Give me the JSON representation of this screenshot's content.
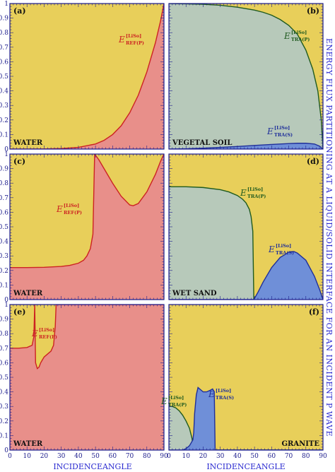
{
  "figure": {
    "side_title": "ENERGY FLUX PARTITIONING AT A LIQUID/SOLID INTERFACE FOR AN INCIDENT P WAVE",
    "x_axis_title": "INCIDENCEANGLE",
    "y_ticks": [
      "0",
      "0.1",
      "0.2",
      "0.3",
      "0.4",
      "0.5",
      "0.6",
      "0.7",
      "0.8",
      "0.9",
      "1"
    ],
    "x_ticks": [
      "0",
      "10",
      "20",
      "30",
      "40",
      "50",
      "60",
      "70",
      "80",
      "90"
    ],
    "colors": {
      "yellow": "#e8cf5a",
      "red_fill": "#e88f8a",
      "red_line": "#cc2222",
      "green_fill": "#b7c9ba",
      "green_line": "#1f5a1f",
      "blue_fill": "#6f8fd8",
      "blue_line": "#1f2f9a",
      "axis": "#1c1c8c"
    }
  },
  "chart_data": [
    {
      "panel": "(a)",
      "type": "area",
      "material": "WATER",
      "xlim": [
        0,
        90
      ],
      "ylim": [
        0,
        1
      ],
      "label_main": "E",
      "label_sup": "[LiSo]",
      "label_sub": "REF(P)",
      "label_color": "red",
      "series": [
        {
          "name": "E REF(P)",
          "color": "red",
          "x": [
            0,
            10,
            20,
            30,
            40,
            50,
            55,
            60,
            65,
            70,
            75,
            80,
            85,
            88,
            90
          ],
          "values": [
            0,
            0,
            0.001,
            0.004,
            0.012,
            0.035,
            0.06,
            0.1,
            0.16,
            0.25,
            0.37,
            0.53,
            0.73,
            0.88,
            1.0
          ]
        }
      ]
    },
    {
      "panel": "(b)",
      "type": "area",
      "material": "VEGETAL SOIL",
      "xlim": [
        0,
        90
      ],
      "ylim": [
        0,
        1
      ],
      "labels": [
        {
          "main": "E",
          "sup": "[LiSo]",
          "sub": "TRA(P)",
          "color": "green"
        },
        {
          "main": "E",
          "sup": "[LiSo]",
          "sub": "TRA(S)",
          "color": "blue"
        }
      ],
      "series": [
        {
          "name": "E TRA(P)",
          "color": "green",
          "x": [
            0,
            10,
            20,
            30,
            40,
            50,
            55,
            60,
            65,
            70,
            75,
            80,
            84,
            87,
            89,
            90
          ],
          "values": [
            1.0,
            0.998,
            0.995,
            0.988,
            0.975,
            0.955,
            0.94,
            0.92,
            0.89,
            0.85,
            0.79,
            0.68,
            0.55,
            0.4,
            0.2,
            0
          ]
        },
        {
          "name": "E TRA(S)",
          "color": "blue",
          "x": [
            0,
            10,
            20,
            30,
            40,
            50,
            60,
            70,
            75,
            80,
            85,
            88,
            90
          ],
          "values": [
            0,
            0.002,
            0.006,
            0.012,
            0.018,
            0.025,
            0.032,
            0.038,
            0.04,
            0.04,
            0.035,
            0.02,
            0
          ]
        }
      ]
    },
    {
      "panel": "(c)",
      "type": "area",
      "material": "WATER",
      "xlim": [
        0,
        90
      ],
      "ylim": [
        0,
        1
      ],
      "label_main": "E",
      "label_sup": "[LiSo]",
      "label_sub": "REF(P)",
      "label_color": "red",
      "series": [
        {
          "name": "E REF(P)",
          "color": "red",
          "x": [
            0,
            10,
            20,
            30,
            35,
            40,
            43,
            45,
            47,
            48.5,
            49.5,
            52,
            55,
            60,
            65,
            70,
            72,
            75,
            80,
            85,
            88,
            90
          ],
          "values": [
            0.22,
            0.22,
            0.222,
            0.228,
            0.235,
            0.25,
            0.27,
            0.3,
            0.35,
            0.45,
            1.0,
            0.96,
            0.9,
            0.8,
            0.71,
            0.65,
            0.645,
            0.66,
            0.74,
            0.86,
            0.95,
            1.0
          ]
        }
      ]
    },
    {
      "panel": "(d)",
      "type": "area",
      "material": "WET SAND",
      "xlim": [
        0,
        90
      ],
      "ylim": [
        0,
        1
      ],
      "labels": [
        {
          "main": "E",
          "sup": "[LiSo]",
          "sub": "TRA(P)",
          "color": "green"
        },
        {
          "main": "E",
          "sup": "[LiSo]",
          "sub": "TRA(S)",
          "color": "blue"
        }
      ],
      "series": [
        {
          "name": "E TRA(P)",
          "color": "green",
          "x": [
            0,
            10,
            20,
            30,
            35,
            40,
            43,
            45,
            47,
            48,
            49,
            49.6,
            90
          ],
          "values": [
            0.775,
            0.775,
            0.77,
            0.755,
            0.74,
            0.715,
            0.69,
            0.665,
            0.62,
            0.57,
            0.47,
            0,
            0
          ]
        },
        {
          "name": "E TRA(S)",
          "color": "blue",
          "x": [
            0,
            20,
            40,
            49.6,
            52,
            55,
            60,
            65,
            70,
            73,
            75,
            80,
            85,
            88,
            90
          ],
          "values": [
            0,
            0,
            0,
            0,
            0.05,
            0.12,
            0.22,
            0.29,
            0.325,
            0.33,
            0.32,
            0.27,
            0.16,
            0.07,
            0
          ]
        }
      ]
    },
    {
      "panel": "(e)",
      "type": "area",
      "material": "WATER",
      "xlim": [
        0,
        90
      ],
      "ylim": [
        0,
        1
      ],
      "label_main": "E",
      "label_sup": "[LiSo]",
      "label_sub": "REF(P)",
      "label_color": "red",
      "series": [
        {
          "name": "E REF(P)",
          "color": "red",
          "x": [
            0,
            5,
            10,
            13,
            14,
            14.5,
            15,
            16,
            17,
            18,
            19,
            20,
            22,
            24,
            25.5,
            26.5,
            27,
            90
          ],
          "values": [
            0.7,
            0.7,
            0.705,
            0.72,
            0.78,
            1.0,
            0.6,
            0.56,
            0.57,
            0.6,
            0.62,
            0.64,
            0.66,
            0.68,
            0.72,
            0.85,
            1.0,
            1.0
          ]
        }
      ]
    },
    {
      "panel": "(f)",
      "type": "area",
      "material": "GRANITE",
      "xlim": [
        0,
        90
      ],
      "ylim": [
        0,
        1
      ],
      "labels": [
        {
          "main": "E",
          "sup": "[LiSo]",
          "sub": "TRA(P)",
          "color": "green"
        },
        {
          "main": "E",
          "sup": "[LiSo]",
          "sub": "TRA(S)",
          "color": "blue"
        }
      ],
      "series": [
        {
          "name": "E TRA(P)",
          "color": "green",
          "x": [
            0,
            2,
            4,
            6,
            8,
            10,
            12,
            13.5,
            14,
            14.5,
            90
          ],
          "values": [
            0.3,
            0.3,
            0.29,
            0.27,
            0.24,
            0.2,
            0.15,
            0.08,
            0.03,
            0,
            0
          ]
        },
        {
          "name": "E TRA(S)",
          "color": "blue",
          "x": [
            0,
            8,
            10,
            12,
            14,
            14.5,
            15,
            16,
            17,
            18,
            20,
            22,
            24,
            25.5,
            26.5,
            27,
            90
          ],
          "values": [
            0,
            0,
            0.01,
            0.03,
            0.07,
            0.12,
            0.25,
            0.38,
            0.43,
            0.42,
            0.4,
            0.4,
            0.41,
            0.42,
            0.4,
            0,
            0
          ]
        }
      ]
    }
  ]
}
